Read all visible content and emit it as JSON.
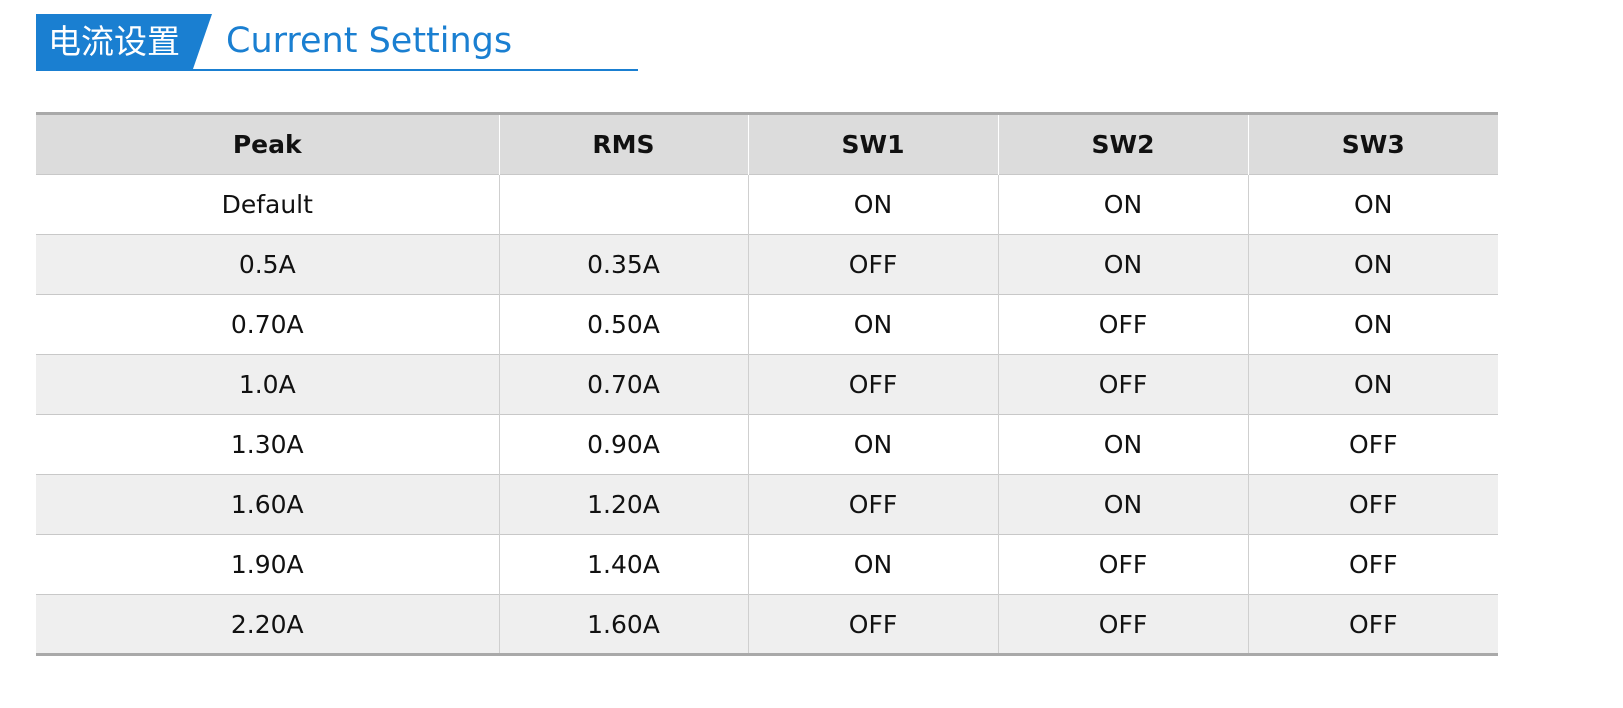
{
  "header": {
    "badge_text": "电流设置",
    "title": "Current Settings",
    "accent_color": "#1a7fd1"
  },
  "table": {
    "columns": [
      "Peak",
      "RMS",
      "SW1",
      "SW2",
      "SW3"
    ],
    "rows": [
      [
        "Default",
        "",
        "ON",
        "ON",
        "ON"
      ],
      [
        "0.5A",
        "0.35A",
        "OFF",
        "ON",
        "ON"
      ],
      [
        "0.70A",
        "0.50A",
        "ON",
        "OFF",
        "ON"
      ],
      [
        "1.0A",
        "0.70A",
        "OFF",
        "OFF",
        "ON"
      ],
      [
        "1.30A",
        "0.90A",
        "ON",
        "ON",
        "OFF"
      ],
      [
        "1.60A",
        "1.20A",
        "OFF",
        "ON",
        "OFF"
      ],
      [
        "1.90A",
        "1.40A",
        "ON",
        "OFF",
        "OFF"
      ],
      [
        "2.20A",
        "1.60A",
        "OFF",
        "OFF",
        "OFF"
      ]
    ]
  }
}
